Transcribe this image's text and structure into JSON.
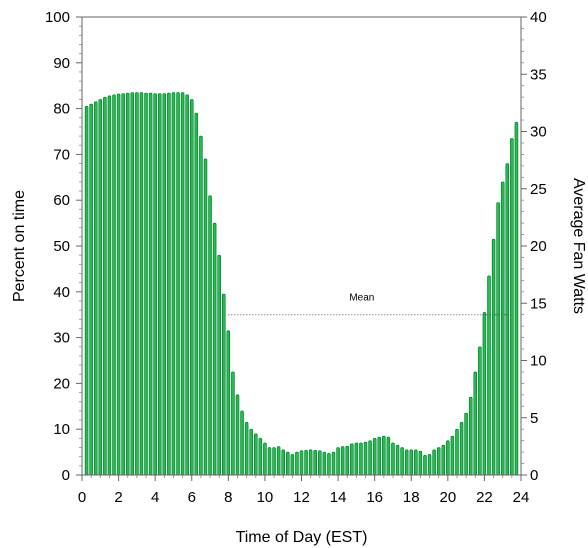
{
  "chart_data": {
    "type": "bar",
    "xlabel": "Time of Day (EST)",
    "ylabel": "Percent on time",
    "ylabel_right": "Average Fan Watts",
    "xlim": [
      0,
      24
    ],
    "ylim": [
      0,
      100
    ],
    "ylim_right": [
      0,
      40
    ],
    "x_ticks": [
      0,
      2,
      4,
      6,
      8,
      10,
      12,
      14,
      16,
      18,
      20,
      22,
      24
    ],
    "y_ticks": [
      0,
      10,
      20,
      30,
      40,
      50,
      60,
      70,
      80,
      90,
      100
    ],
    "y_ticks_right": [
      0,
      5,
      10,
      15,
      20,
      25,
      30,
      35,
      40
    ],
    "bar_color": "#1fbf4f",
    "bar_edge_color": "#0a6b2a",
    "bar_width_hours": 0.16,
    "mean": {
      "label": "Mean",
      "value": 35,
      "x_start": 8,
      "x_end": 23.5
    },
    "x": [
      0.25,
      0.5,
      0.75,
      1,
      1.25,
      1.5,
      1.75,
      2,
      2.25,
      2.5,
      2.75,
      3,
      3.25,
      3.5,
      3.75,
      4,
      4.25,
      4.5,
      4.75,
      5,
      5.25,
      5.5,
      5.75,
      6,
      6.25,
      6.5,
      6.75,
      7,
      7.25,
      7.5,
      7.75,
      8,
      8.25,
      8.5,
      8.75,
      9,
      9.25,
      9.5,
      9.75,
      10,
      10.25,
      10.5,
      10.75,
      11,
      11.25,
      11.5,
      11.75,
      12,
      12.25,
      12.5,
      12.75,
      13,
      13.25,
      13.5,
      13.75,
      14,
      14.25,
      14.5,
      14.75,
      15,
      15.25,
      15.5,
      15.75,
      16,
      16.25,
      16.5,
      16.75,
      17,
      17.25,
      17.5,
      17.75,
      18,
      18.25,
      18.5,
      18.75,
      19,
      19.25,
      19.5,
      19.75,
      20,
      20.25,
      20.5,
      20.75,
      21,
      21.25,
      21.5,
      21.75,
      22,
      22.25,
      22.5,
      22.75,
      23,
      23.25,
      23.5,
      23.75
    ],
    "values": [
      80.5,
      81,
      81.5,
      82,
      82.5,
      82.8,
      83,
      83.2,
      83.3,
      83.4,
      83.5,
      83.5,
      83.5,
      83.4,
      83.4,
      83.3,
      83.3,
      83.3,
      83.4,
      83.5,
      83.5,
      83.5,
      83,
      82,
      79,
      74,
      69,
      61,
      55,
      48,
      39.5,
      31.5,
      22.5,
      17.5,
      14,
      11.5,
      10,
      9,
      8,
      7,
      6,
      6,
      6.2,
      5.5,
      5,
      4.5,
      5,
      5.3,
      5.4,
      5.5,
      5.4,
      5.3,
      5,
      4.7,
      5,
      6,
      6.2,
      6.3,
      6.8,
      7,
      7,
      7.2,
      7.5,
      8,
      8.3,
      8.5,
      8.3,
      7,
      6.5,
      6,
      5.5,
      5.5,
      5.5,
      5.2,
      4.3,
      4.5,
      5.5,
      6,
      6.5,
      7.5,
      8.5,
      10,
      11.5,
      13.5,
      17,
      22.5,
      28,
      35.5,
      43.5,
      51.5,
      59.5,
      64,
      68,
      73.5,
      77
    ]
  }
}
